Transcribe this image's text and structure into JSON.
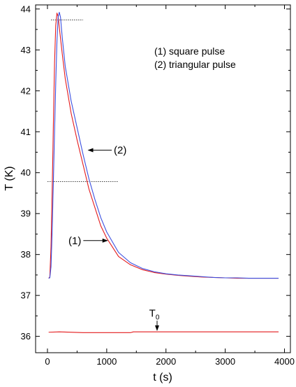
{
  "chart_data": {
    "type": "line",
    "xlabel": "t (s)",
    "ylabel": "T (K)",
    "xlim": [
      -200,
      4100
    ],
    "ylim": [
      35.6,
      44.1
    ],
    "x_ticks": [
      "0",
      "1000",
      "2000",
      "3000",
      "4000"
    ],
    "y_ticks": [
      "36",
      "37",
      "38",
      "39",
      "40",
      "41",
      "42",
      "43",
      "44"
    ],
    "legend": {
      "placement": "top-right",
      "entries": [
        "(1)  square pulse",
        "(2)  triangular pulse"
      ]
    },
    "series": [
      {
        "label": "(1)",
        "color": "#e41a1c",
        "x": [
          20,
          40,
          60,
          80,
          100,
          120,
          140,
          160,
          180,
          200,
          250,
          300,
          400,
          500,
          600,
          700,
          800,
          900,
          1000,
          1200,
          1400,
          1600,
          1800,
          2000,
          2200,
          2400,
          2600,
          2800,
          3000,
          3200,
          3400,
          3600,
          3900
        ],
        "y": [
          37.42,
          37.45,
          38.2,
          39.6,
          41.2,
          42.7,
          43.6,
          43.9,
          43.82,
          43.55,
          42.9,
          42.3,
          41.45,
          40.8,
          40.2,
          39.6,
          39.15,
          38.7,
          38.4,
          37.95,
          37.75,
          37.63,
          37.56,
          37.52,
          37.49,
          37.47,
          37.45,
          37.44,
          37.43,
          37.42,
          37.42,
          37.42,
          37.42
        ]
      },
      {
        "label": "(2)",
        "color": "#3b4fe0",
        "x": [
          20,
          40,
          60,
          80,
          100,
          120,
          140,
          160,
          180,
          200,
          220,
          250,
          300,
          400,
          500,
          600,
          700,
          800,
          900,
          1000,
          1200,
          1400,
          1600,
          1800,
          2000,
          2200,
          2400,
          2600,
          2800,
          3000,
          3200,
          3400,
          3600,
          3900
        ],
        "y": [
          37.42,
          37.43,
          37.7,
          38.6,
          39.8,
          41.0,
          42.2,
          43.2,
          43.8,
          43.92,
          43.8,
          43.3,
          42.6,
          41.75,
          41.1,
          40.45,
          39.85,
          39.35,
          38.9,
          38.55,
          38.05,
          37.8,
          37.66,
          37.58,
          37.53,
          37.5,
          37.48,
          37.46,
          37.44,
          37.43,
          37.43,
          37.42,
          37.42,
          37.42
        ]
      },
      {
        "label": "T0",
        "color": "#e41a1c",
        "x": [
          20,
          200,
          600,
          1000,
          1400,
          1450,
          1800,
          2200,
          2600,
          3000,
          3400,
          3900
        ],
        "y": [
          36.1,
          36.11,
          36.09,
          36.09,
          36.09,
          36.11,
          36.11,
          36.11,
          36.11,
          36.11,
          36.11,
          36.11
        ]
      }
    ],
    "reference_lines": [
      {
        "y": 43.73,
        "x_start": 60,
        "x_end": 600,
        "style": "dotted"
      },
      {
        "y": 39.78,
        "x_start": 0,
        "x_end": 1200,
        "style": "dotted"
      }
    ],
    "annotations": [
      {
        "text": "(2)",
        "arrow_to_x": 690,
        "arrow_to_y": 40.55,
        "label_x": 1120,
        "label_y": 40.55
      },
      {
        "text": "(1)",
        "arrow_to_x": 1010,
        "arrow_to_y": 38.34,
        "label_x": 570,
        "label_y": 38.34
      },
      {
        "text": "T",
        "subscript": "0",
        "arrow_to_x": 1850,
        "arrow_to_y": 36.13,
        "label_x": 1850,
        "label_y": 36.45
      }
    ]
  }
}
